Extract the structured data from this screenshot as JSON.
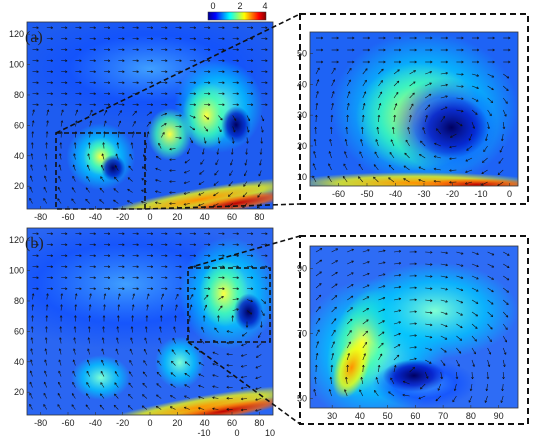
{
  "chart_data": {
    "type": "heatmap",
    "colorbar": {
      "ticks": [
        "0",
        "2",
        "4"
      ],
      "range": [
        0,
        4
      ],
      "colormap": [
        "#00008f",
        "#0000ff",
        "#0080ff",
        "#00ffff",
        "#80ff80",
        "#ffff00",
        "#ff8000",
        "#ff0000",
        "#800000"
      ]
    },
    "panels": [
      {
        "label": "(a)",
        "x_ticks": [
          "-80",
          "-60",
          "-40",
          "-20",
          "0",
          "20",
          "40",
          "60",
          "80"
        ],
        "y_ticks": [
          "20",
          "40",
          "60",
          "80",
          "100",
          "120"
        ],
        "xlim": [
          -90,
          90
        ],
        "ylim": [
          5,
          128
        ],
        "zoom_box": {
          "x": [
            -60,
            0
          ],
          "y": [
            8,
            55
          ]
        }
      },
      {
        "label": "",
        "x_ticks": [
          "-60",
          "-50",
          "-40",
          "-30",
          "-20",
          "-10",
          "0"
        ],
        "y_ticks": [
          "10",
          "20",
          "30",
          "40",
          "50"
        ],
        "xlim": [
          -70,
          3
        ],
        "ylim": [
          7,
          57
        ]
      },
      {
        "label": "(b)",
        "x_ticks": [
          "-80",
          "-60",
          "-40",
          "-20",
          "0",
          "20",
          "40",
          "60",
          "80"
        ],
        "y_ticks": [
          "20",
          "40",
          "60",
          "80",
          "100",
          "120"
        ],
        "xlim": [
          -90,
          90
        ],
        "ylim": [
          5,
          128
        ],
        "zoom_box": {
          "x": [
            30,
            90
          ],
          "y": [
            50,
            95
          ]
        }
      },
      {
        "label": "",
        "x_ticks": [
          "30",
          "40",
          "50",
          "60",
          "70",
          "80",
          "90"
        ],
        "y_ticks": [
          "50",
          "70",
          "90"
        ],
        "xlim": [
          22,
          97
        ],
        "ylim": [
          47,
          97
        ]
      }
    ],
    "extra_ticks": [
      "-10",
      "0",
      "10"
    ]
  }
}
